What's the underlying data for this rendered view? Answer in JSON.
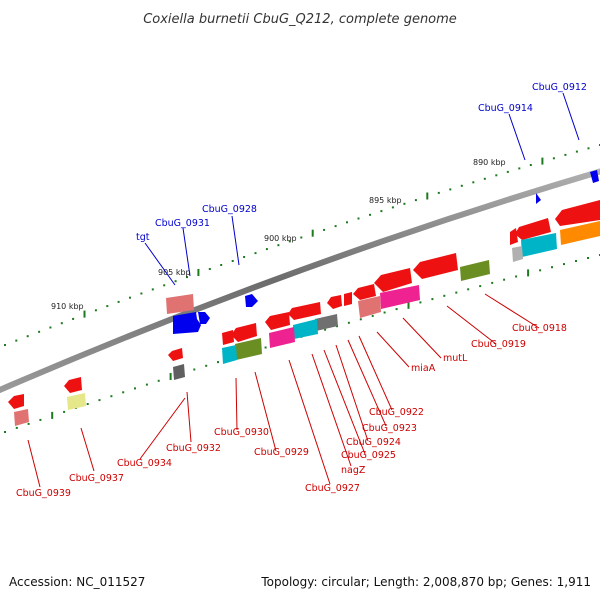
{
  "title": "Coxiella burnetii CbuG_Q212, complete genome",
  "footer": {
    "accession": "Accession: NC_011527",
    "summary": "Topology: circular; Length: 2,008,870 bp; Genes: 1,911"
  },
  "scale_labels": [
    "890 kbp",
    "895 kbp",
    "900 kbp",
    "905 kbp",
    "910 kbp"
  ],
  "colors": {
    "forward_label": "#0000cc",
    "reverse_label": "#cc0000",
    "backbone": "#808080",
    "tick": "#1e7a1e"
  },
  "gene_labels": {
    "forward": [
      "CbuG_0912",
      "CbuG_0914",
      "CbuG_0928",
      "CbuG_0931",
      "tgt"
    ],
    "reverse": [
      "CbuG_0918",
      "CbuG_0919",
      "mutL",
      "miaA",
      "CbuG_0922",
      "CbuG_0923",
      "CbuG_0924",
      "CbuG_0925",
      "nagZ",
      "CbuG_0927",
      "CbuG_0929",
      "CbuG_0930",
      "CbuG_0932",
      "CbuG_0934",
      "CbuG_0937",
      "CbuG_0939"
    ]
  }
}
